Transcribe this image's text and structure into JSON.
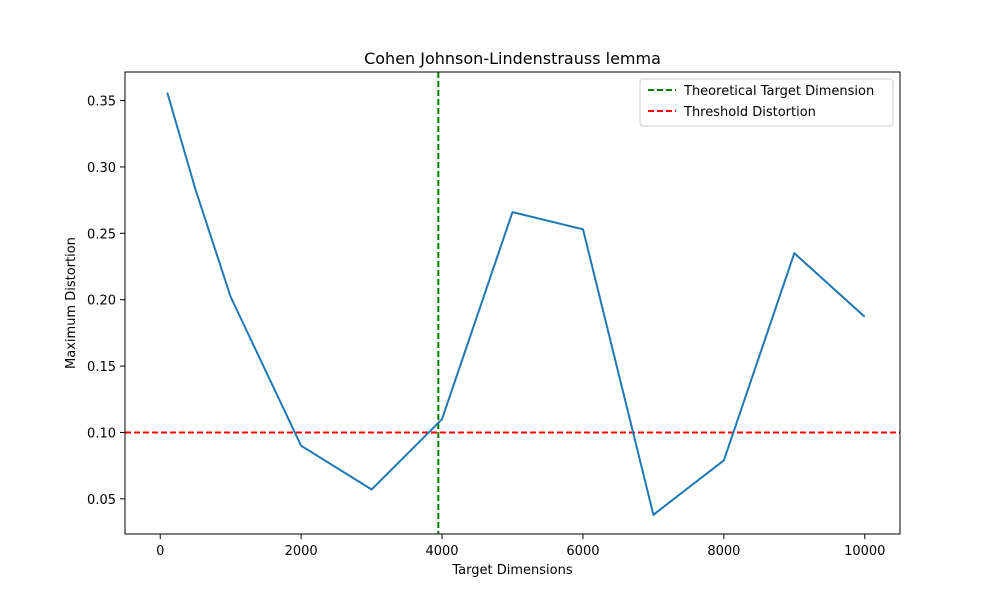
{
  "chart_data": {
    "type": "line",
    "title": "Cohen Johnson-Lindenstrauss lemma",
    "xlabel": "Target Dimensions",
    "ylabel": "Maximum Distortion",
    "xlim": [
      -500,
      10500
    ],
    "ylim": [
      0.0235,
      0.3715
    ],
    "xticks": [
      0,
      2000,
      4000,
      6000,
      8000,
      10000
    ],
    "xtick_labels": [
      "0",
      "2000",
      "4000",
      "6000",
      "8000",
      "10000"
    ],
    "yticks": [
      0.05,
      0.1,
      0.15,
      0.2,
      0.25,
      0.3,
      0.35
    ],
    "ytick_labels": [
      "0.05",
      "0.10",
      "0.15",
      "0.20",
      "0.25",
      "0.30",
      "0.35"
    ],
    "grid": false,
    "legend_position": "top-right",
    "series": [
      {
        "color": "#1f77b4",
        "x": [
          100,
          500,
          1000,
          2000,
          3000,
          4000,
          5000,
          6000,
          7000,
          8000,
          9000,
          10000
        ],
        "y": [
          0.356,
          0.283,
          0.202,
          0.09,
          0.057,
          0.11,
          0.266,
          0.253,
          0.038,
          0.079,
          0.235,
          0.187
        ]
      }
    ],
    "reference_lines": [
      {
        "name": "Theoretical Target Dimension",
        "orientation": "vertical",
        "value": 3947,
        "color": "#008000",
        "style": "dashed"
      },
      {
        "name": "Threshold Distortion",
        "orientation": "horizontal",
        "value": 0.1,
        "color": "#ff0000",
        "style": "dashed"
      }
    ]
  }
}
